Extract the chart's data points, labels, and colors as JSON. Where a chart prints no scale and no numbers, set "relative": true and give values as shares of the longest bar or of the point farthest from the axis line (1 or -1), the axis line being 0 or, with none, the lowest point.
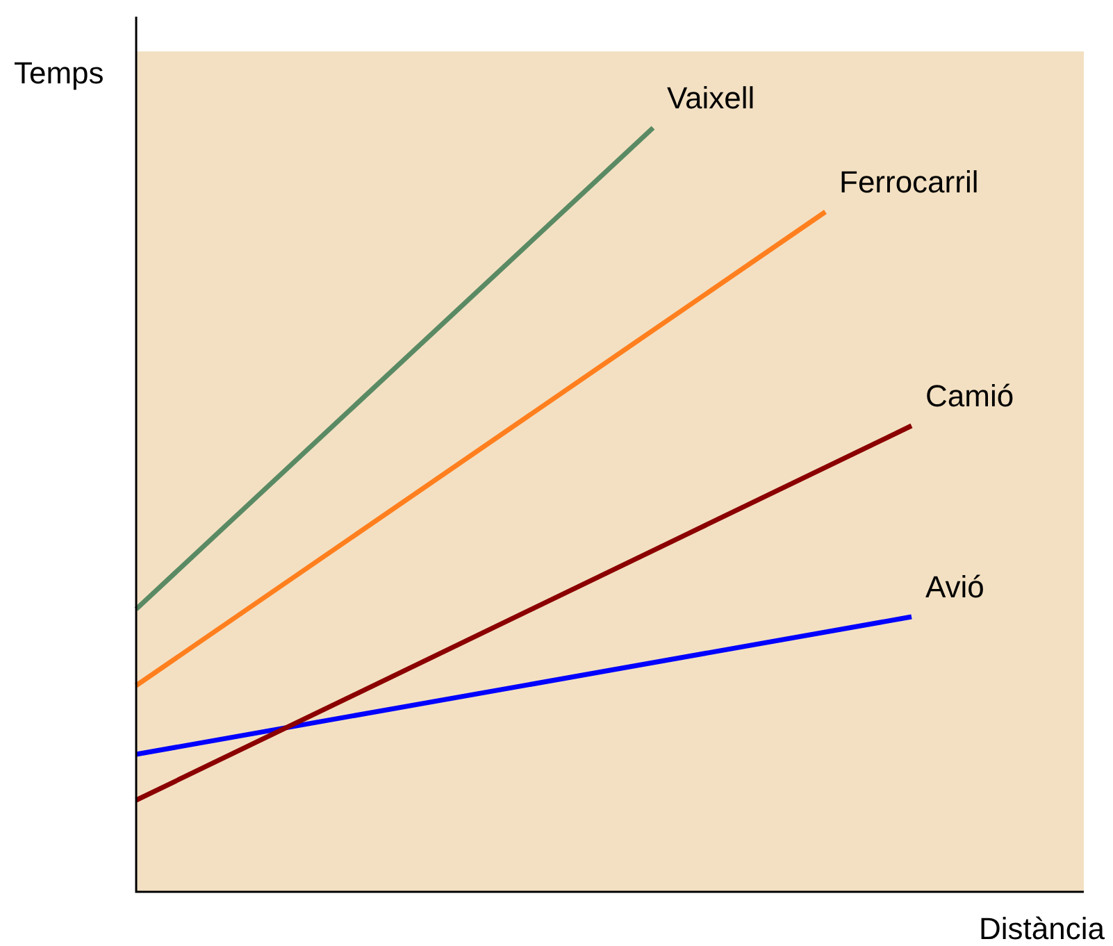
{
  "chart_data": {
    "type": "line",
    "relative": true,
    "xlabel": "Distància",
    "ylabel": "Temps",
    "categories": [
      null,
      null,
      null,
      null,
      null,
      null,
      null,
      null,
      null,
      null,
      null,
      null
    ],
    "legend": false,
    "marker": "none",
    "line_style": "solid",
    "series": [
      {
        "name": "Vaixell",
        "color": "#5a8a64",
        "values": [
          0.37,
          null,
          null,
          null,
          null,
          null,
          1,
          null,
          null,
          null,
          null,
          null
        ]
      },
      {
        "name": "Ferrocarril",
        "color": "#ff7f1e",
        "values": [
          0.27,
          null,
          null,
          null,
          null,
          null,
          null,
          null,
          0.89,
          null,
          null,
          null
        ]
      },
      {
        "name": "Camió",
        "color": "#8b0000",
        "values": [
          0.12,
          null,
          null,
          null,
          null,
          null,
          null,
          null,
          null,
          0.61,
          null,
          null
        ]
      },
      {
        "name": "Avió",
        "color": "#0000ff",
        "values": [
          0.18,
          null,
          null,
          null,
          null,
          null,
          null,
          null,
          null,
          0.36,
          null,
          null
        ]
      }
    ]
  }
}
